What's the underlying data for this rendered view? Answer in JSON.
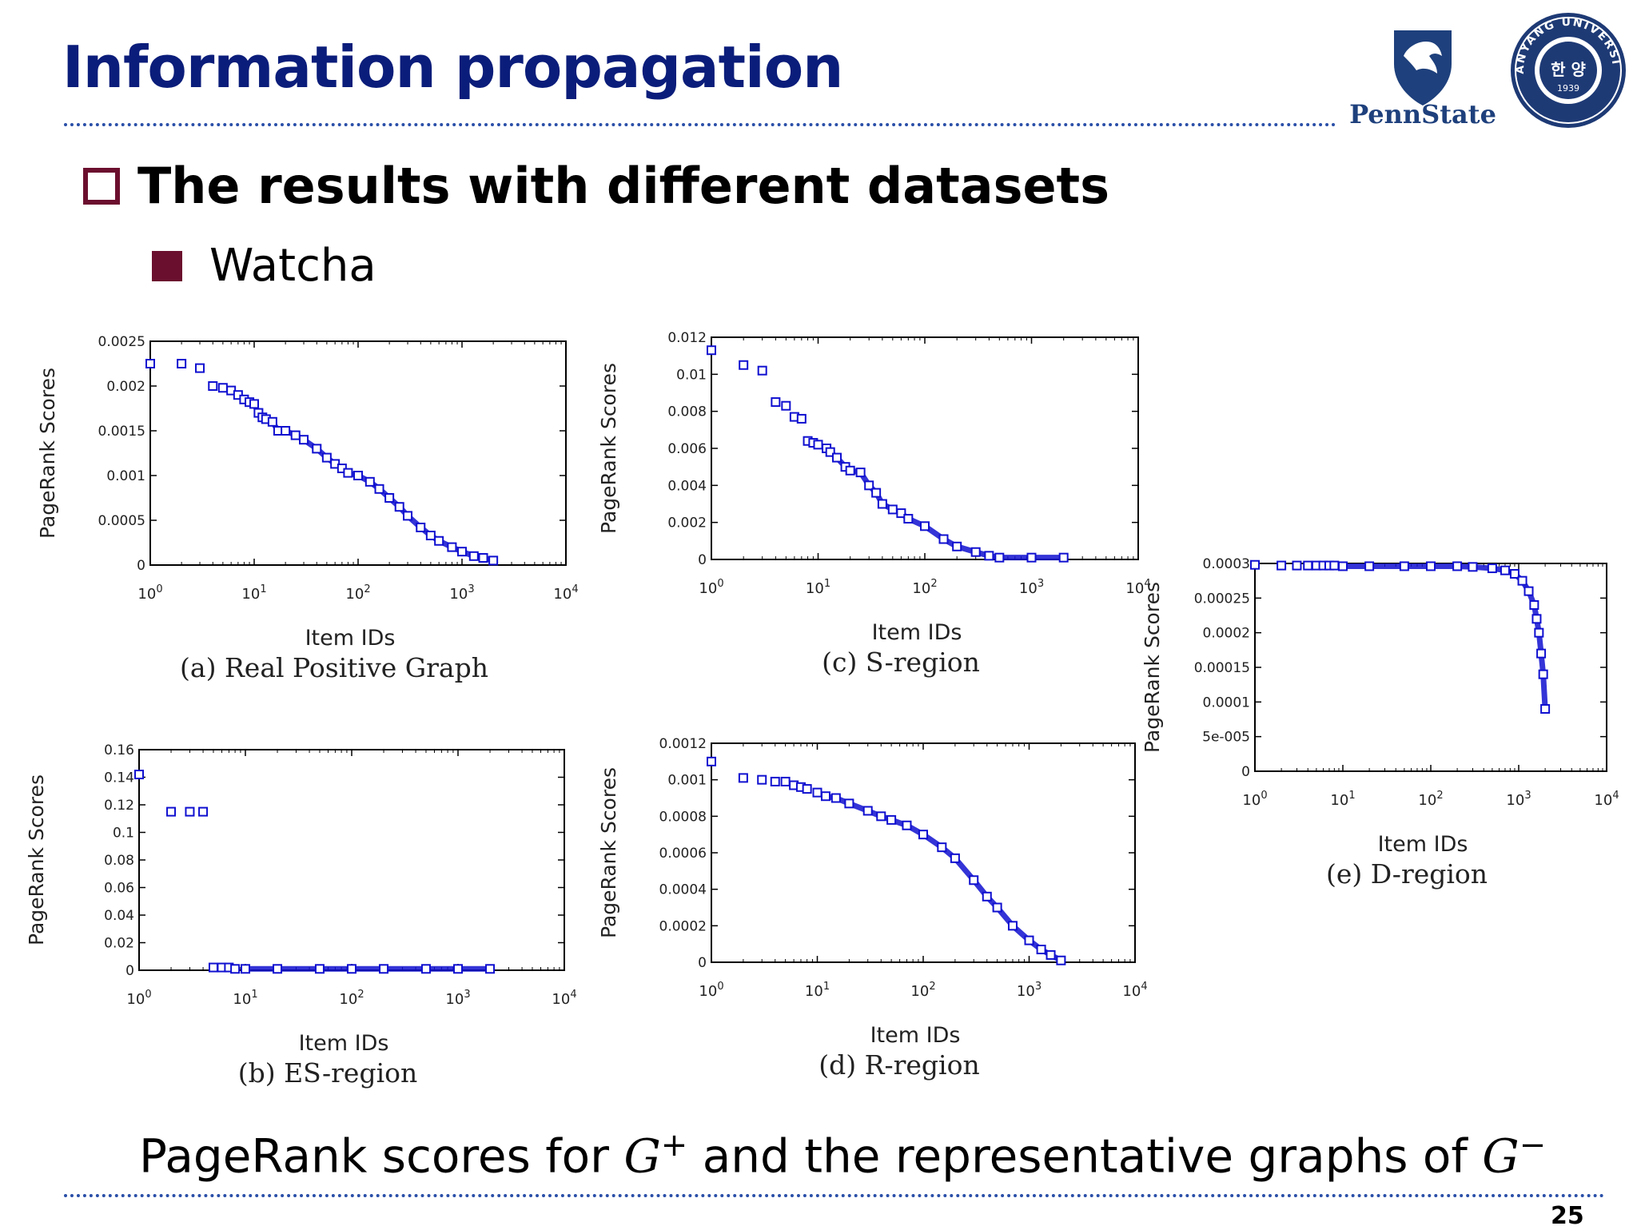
{
  "slide": {
    "title": "Information propagation",
    "subtitle": "The results with different datasets",
    "bullet": "Watcha",
    "caption_parts": [
      "PageRank scores for ",
      "G",
      "+",
      " and the representative graphs of ",
      "G",
      "−"
    ],
    "page_number": "25",
    "logos": {
      "pennstate_text": "PennState",
      "hanyang_ring_text": "HANYANG UNIVERSITY",
      "hanyang_center_text": "한 양",
      "hanyang_year": "1939"
    },
    "colors": {
      "title": "#0b1d7a",
      "accent": "#6b0f2e",
      "marker": "#1010d0"
    }
  },
  "chart_data": [
    {
      "id": "a",
      "type": "scatter",
      "caption": "(a) Real Positive Graph",
      "xlabel": "Item IDs",
      "ylabel": "PageRank Scores",
      "xscale": "log",
      "xlim": [
        1,
        10000
      ],
      "ylim": [
        0,
        0.0025
      ],
      "xticks": [
        "10^0",
        "10^1",
        "10^2",
        "10^3",
        "10^4"
      ],
      "yticks": [
        "0",
        "0.0005",
        "0.001",
        "0.0015",
        "0.002",
        "0.0025"
      ],
      "points": [
        [
          1,
          0.00225
        ],
        [
          2,
          0.00225
        ],
        [
          3,
          0.0022
        ],
        [
          4,
          0.002
        ],
        [
          5,
          0.00198
        ],
        [
          6,
          0.00195
        ],
        [
          7,
          0.0019
        ],
        [
          8,
          0.00185
        ],
        [
          9,
          0.00182
        ],
        [
          10,
          0.0018
        ],
        [
          11,
          0.0017
        ],
        [
          12,
          0.00165
        ],
        [
          13,
          0.00163
        ],
        [
          15,
          0.0016
        ],
        [
          17,
          0.0015
        ],
        [
          20,
          0.0015
        ],
        [
          25,
          0.00145
        ],
        [
          30,
          0.0014
        ],
        [
          40,
          0.0013
        ],
        [
          50,
          0.0012
        ],
        [
          60,
          0.00113
        ],
        [
          70,
          0.00108
        ],
        [
          80,
          0.00103
        ],
        [
          100,
          0.001
        ],
        [
          130,
          0.00093
        ],
        [
          160,
          0.00085
        ],
        [
          200,
          0.00075
        ],
        [
          250,
          0.00065
        ],
        [
          300,
          0.00055
        ],
        [
          400,
          0.00042
        ],
        [
          500,
          0.00033
        ],
        [
          600,
          0.00027
        ],
        [
          800,
          0.0002
        ],
        [
          1000,
          0.00015
        ],
        [
          1300,
          0.0001
        ],
        [
          1600,
          8e-05
        ],
        [
          2000,
          5e-05
        ]
      ]
    },
    {
      "id": "b",
      "type": "scatter",
      "caption": "(b) ES-region",
      "xlabel": "Item IDs",
      "ylabel": "PageRank Scores",
      "xscale": "log",
      "xlim": [
        1,
        10000
      ],
      "ylim": [
        0,
        0.16
      ],
      "xticks": [
        "10^0",
        "10^1",
        "10^2",
        "10^3",
        "10^4"
      ],
      "yticks": [
        "0",
        "0.02",
        "0.04",
        "0.06",
        "0.08",
        "0.1",
        "0.12",
        "0.14",
        "0.16"
      ],
      "points": [
        [
          1,
          0.142
        ],
        [
          2,
          0.115
        ],
        [
          3,
          0.115
        ],
        [
          4,
          0.115
        ],
        [
          5,
          0.002
        ],
        [
          6,
          0.002
        ],
        [
          7,
          0.002
        ],
        [
          8,
          0.001
        ],
        [
          10,
          0.001
        ],
        [
          20,
          0.001
        ],
        [
          50,
          0.001
        ],
        [
          100,
          0.001
        ],
        [
          200,
          0.001
        ],
        [
          500,
          0.001
        ],
        [
          1000,
          0.001
        ],
        [
          2000,
          0.001
        ]
      ]
    },
    {
      "id": "c",
      "type": "scatter",
      "caption": "(c) S-region",
      "xlabel": "Item IDs",
      "ylabel": "PageRank Scores",
      "xscale": "log",
      "xlim": [
        1,
        10000
      ],
      "ylim": [
        0,
        0.012
      ],
      "xticks": [
        "10^0",
        "10^1",
        "10^2",
        "10^3",
        "10^4"
      ],
      "yticks": [
        "0",
        "0.002",
        "0.004",
        "0.006",
        "0.008",
        "0.01",
        "0.012"
      ],
      "points": [
        [
          1,
          0.0113
        ],
        [
          2,
          0.0105
        ],
        [
          3,
          0.0102
        ],
        [
          4,
          0.0085
        ],
        [
          5,
          0.0083
        ],
        [
          6,
          0.0077
        ],
        [
          7,
          0.0076
        ],
        [
          8,
          0.0064
        ],
        [
          9,
          0.0063
        ],
        [
          10,
          0.0062
        ],
        [
          12,
          0.006
        ],
        [
          13,
          0.0058
        ],
        [
          15,
          0.0055
        ],
        [
          18,
          0.005
        ],
        [
          20,
          0.0048
        ],
        [
          25,
          0.0047
        ],
        [
          30,
          0.004
        ],
        [
          35,
          0.0036
        ],
        [
          40,
          0.003
        ],
        [
          50,
          0.0027
        ],
        [
          60,
          0.0025
        ],
        [
          70,
          0.0022
        ],
        [
          100,
          0.0018
        ],
        [
          150,
          0.0011
        ],
        [
          200,
          0.0007
        ],
        [
          300,
          0.0004
        ],
        [
          400,
          0.0002
        ],
        [
          500,
          0.0001
        ],
        [
          1000,
          0.0001
        ],
        [
          2000,
          0.0001
        ]
      ]
    },
    {
      "id": "d",
      "type": "scatter",
      "caption": "(d) R-region",
      "xlabel": "Item IDs",
      "ylabel": "PageRank Scores",
      "xscale": "log",
      "xlim": [
        1,
        10000
      ],
      "ylim": [
        0,
        0.0012
      ],
      "xticks": [
        "10^0",
        "10^1",
        "10^2",
        "10^3",
        "10^4"
      ],
      "yticks": [
        "0",
        "0.0002",
        "0.0004",
        "0.0006",
        "0.0008",
        "0.001",
        "0.0012"
      ],
      "points": [
        [
          1,
          0.0011
        ],
        [
          2,
          0.00101
        ],
        [
          3,
          0.001
        ],
        [
          4,
          0.00099
        ],
        [
          5,
          0.00099
        ],
        [
          6,
          0.00097
        ],
        [
          7,
          0.00096
        ],
        [
          8,
          0.00095
        ],
        [
          10,
          0.00093
        ],
        [
          12,
          0.00091
        ],
        [
          15,
          0.0009
        ],
        [
          20,
          0.00087
        ],
        [
          30,
          0.00083
        ],
        [
          40,
          0.0008
        ],
        [
          50,
          0.00078
        ],
        [
          70,
          0.00075
        ],
        [
          100,
          0.0007
        ],
        [
          150,
          0.00063
        ],
        [
          200,
          0.00057
        ],
        [
          300,
          0.00045
        ],
        [
          400,
          0.00036
        ],
        [
          500,
          0.0003
        ],
        [
          700,
          0.0002
        ],
        [
          1000,
          0.00012
        ],
        [
          1300,
          7e-05
        ],
        [
          1600,
          4e-05
        ],
        [
          2000,
          1e-05
        ]
      ]
    },
    {
      "id": "e",
      "type": "scatter",
      "caption": "(e) D-region",
      "xlabel": "Item IDs",
      "ylabel": "PageRank Scores",
      "xscale": "log",
      "xlim": [
        1,
        10000
      ],
      "ylim": [
        0,
        0.0003
      ],
      "xticks": [
        "10^0",
        "10^1",
        "10^2",
        "10^3",
        "10^4"
      ],
      "yticks": [
        "0",
        "5e-005",
        "0.0001",
        "0.00015",
        "0.0002",
        "0.00025",
        "0.0003"
      ],
      "points": [
        [
          1,
          0.000298
        ],
        [
          2,
          0.000297
        ],
        [
          3,
          0.000297
        ],
        [
          4,
          0.000297
        ],
        [
          5,
          0.000297
        ],
        [
          6,
          0.000297
        ],
        [
          7,
          0.000297
        ],
        [
          8,
          0.000297
        ],
        [
          10,
          0.000296
        ],
        [
          20,
          0.000296
        ],
        [
          50,
          0.000296
        ],
        [
          100,
          0.000296
        ],
        [
          200,
          0.000296
        ],
        [
          300,
          0.000295
        ],
        [
          500,
          0.000293
        ],
        [
          700,
          0.00029
        ],
        [
          900,
          0.000285
        ],
        [
          1100,
          0.000275
        ],
        [
          1300,
          0.00026
        ],
        [
          1500,
          0.00024
        ],
        [
          1600,
          0.00022
        ],
        [
          1700,
          0.0002
        ],
        [
          1800,
          0.00017
        ],
        [
          1900,
          0.00014
        ],
        [
          2000,
          9e-05
        ]
      ]
    }
  ]
}
